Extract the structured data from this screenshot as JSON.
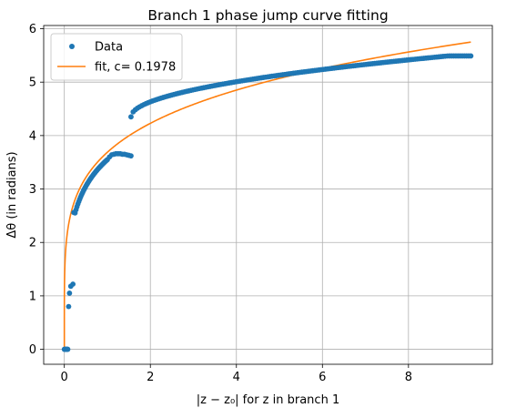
{
  "chart_data": {
    "type": "scatter",
    "title": "Branch 1 phase jump curve fitting",
    "xlabel": "|z − z₀| for z in branch 1",
    "ylabel": "Δθ (in radians)",
    "xlim": [
      -0.48,
      9.95
    ],
    "ylim": [
      -0.28,
      6.06
    ],
    "xticks": [
      0,
      2,
      4,
      6,
      8
    ],
    "yticks": [
      0,
      1,
      2,
      3,
      4,
      5,
      6
    ],
    "grid": true,
    "legend_position": "top-left",
    "series": [
      {
        "name": "Data",
        "kind": "markers",
        "color": "#1f77b4",
        "segments": [
          {
            "x_start": 0.0,
            "x_end": 0.08,
            "count": 6,
            "a": 0.0,
            "b": 0.0,
            "p": 1.0,
            "fixed_y": 0.0
          },
          {
            "points": [
              [
                0.1,
                0.8
              ],
              [
                0.12,
                1.05
              ],
              [
                0.15,
                1.18
              ],
              [
                0.2,
                1.22
              ],
              [
                0.22,
                2.56
              ]
            ]
          },
          {
            "x_start": 0.25,
            "x_end": 1.0,
            "count": 36,
            "a": 3.1,
            "b": 0.6,
            "p": 0.5,
            "log": true
          },
          {
            "points": [
              [
                1.05,
                3.6
              ],
              [
                1.1,
                3.64
              ],
              [
                1.15,
                3.65
              ],
              [
                1.2,
                3.66
              ],
              [
                1.25,
                3.66
              ],
              [
                1.3,
                3.66
              ],
              [
                1.35,
                3.65
              ],
              [
                1.4,
                3.65
              ],
              [
                1.45,
                3.64
              ],
              [
                1.5,
                3.63
              ],
              [
                1.55,
                3.62
              ]
            ]
          },
          {
            "x_start": 1.55,
            "x_end": 9.45,
            "count": 160,
            "a": 4.35,
            "b": 0.55,
            "p": 0.5,
            "from_x": 1.55,
            "sqrtfit": true
          }
        ]
      },
      {
        "name": "fit, c= 0.1978",
        "kind": "line",
        "color": "#ff7f0e",
        "c": 0.1978,
        "x_range": [
          0.0,
          9.45
        ]
      }
    ]
  }
}
